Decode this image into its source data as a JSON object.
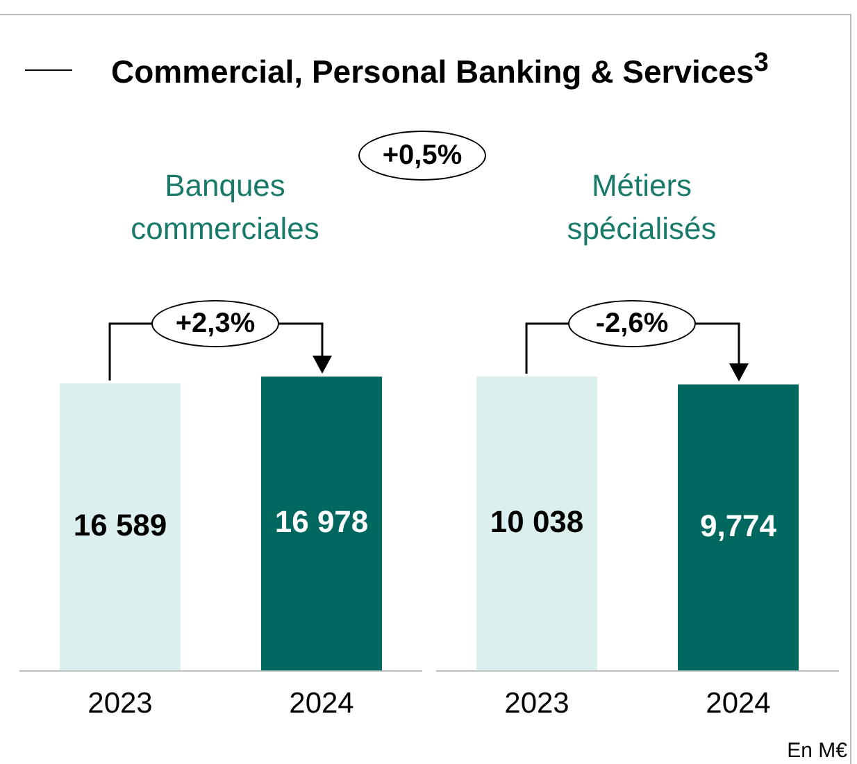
{
  "chart_data": [
    {
      "type": "bar",
      "title": "Commercial, Personal Banking & Services$^{3}$",
      "subtitle": "Banques commerciales",
      "categories": [
        "2023",
        "2024"
      ],
      "values": [
        16589,
        16978
      ],
      "colors": [
        "#dcefef",
        "#00685e"
      ],
      "value_labels": [
        "16 589",
        "16 978"
      ],
      "annotations": [
        "+2,3%",
        "+0,5%"
      ],
      "grid": false,
      "legend": false
    },
    {
      "type": "bar",
      "subtitle": "Métiers spécialisés",
      "categories": [
        "2023",
        "2024"
      ],
      "values": [
        10038,
        9774
      ],
      "colors": [
        "#dcefef",
        "#00685e"
      ],
      "value_labels": [
        "10 038",
        "9,774"
      ],
      "annotations": [
        "-2,6%",
        "En M€"
      ],
      "grid": false,
      "legend": false
    }
  ]
}
